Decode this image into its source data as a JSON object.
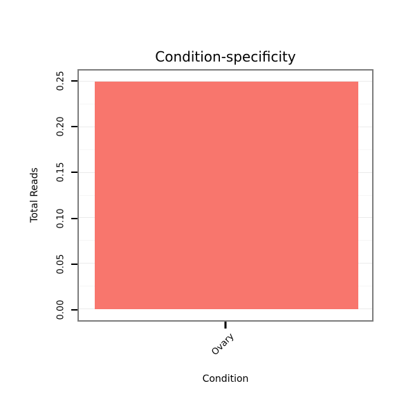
{
  "chart_data": {
    "type": "bar",
    "title": "Condition-specificity",
    "xlabel": "Condition",
    "ylabel": "Total Reads",
    "categories": [
      "Ovary"
    ],
    "values": [
      0.25
    ],
    "ylim": [
      0,
      0.25
    ],
    "y_expansion": 0.05,
    "yticks": [
      0.0,
      0.05,
      0.1,
      0.15,
      0.2,
      0.25
    ],
    "ytick_labels": [
      "0.00",
      "0.05",
      "0.10",
      "0.15",
      "0.20",
      "0.25"
    ],
    "grid": true,
    "legend": "none",
    "colors": {
      "bar_fill": "#F8766D",
      "panel_border": "#7c7c7c",
      "grid_major": "#ebebeb",
      "grid_minor": "#f6f6f6",
      "text": "#000000",
      "background": "#ffffff"
    }
  }
}
